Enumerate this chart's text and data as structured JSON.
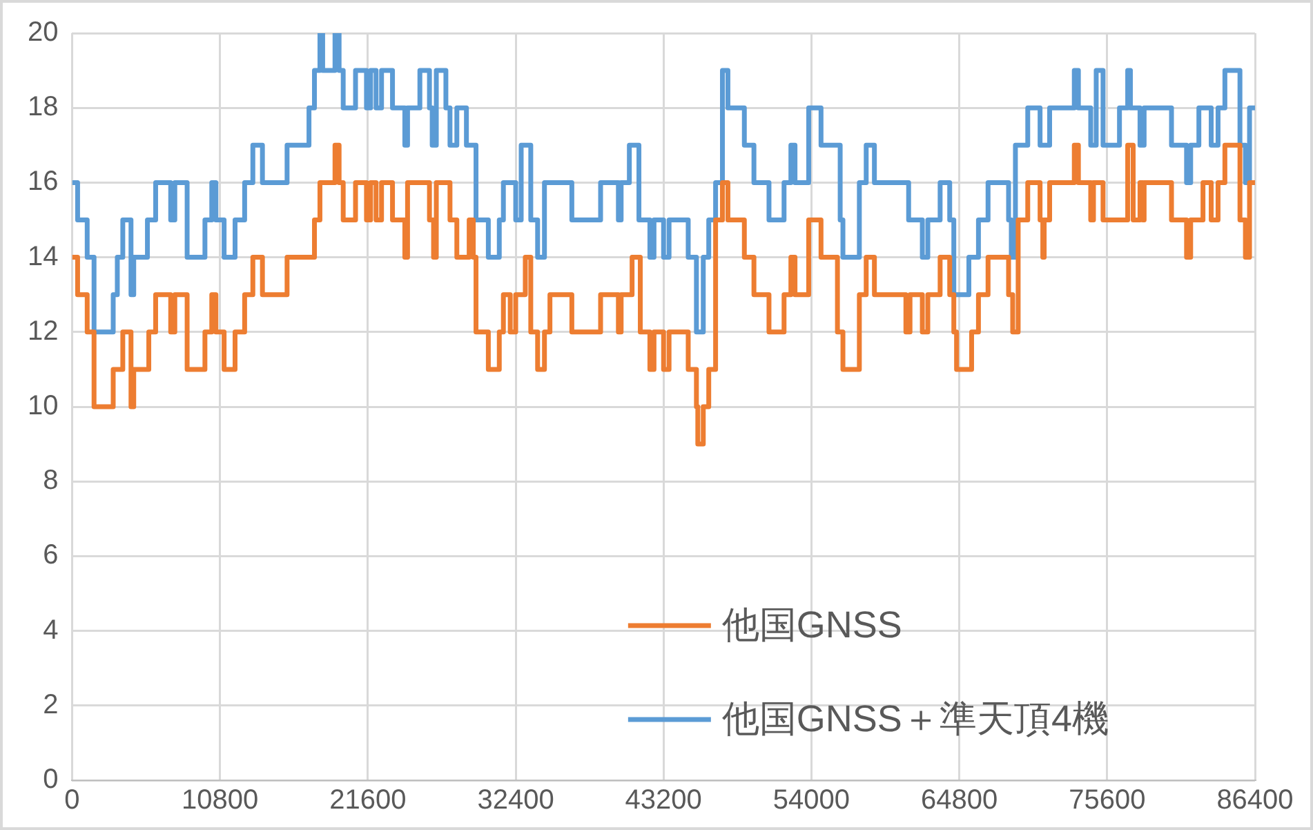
{
  "chart_data": {
    "type": "step",
    "xlim": [
      0,
      86400
    ],
    "xticks": [
      0,
      10800,
      21600,
      32400,
      43200,
      54000,
      64800,
      75600,
      86400
    ],
    "ylim": [
      0,
      20
    ],
    "yticks": [
      0,
      2,
      4,
      6,
      8,
      10,
      12,
      14,
      16,
      18,
      20
    ],
    "grid": true,
    "legend": "bottom right",
    "marker": "none",
    "line_style": "solid",
    "series": [
      {
        "name": "他国GNSS",
        "color": "#ed7d31",
        "x": [
          0,
          400,
          1100,
          1600,
          3000,
          3700,
          4300,
          4500,
          5600,
          6100,
          7200,
          7500,
          8400,
          9700,
          10200,
          10500,
          11100,
          11900,
          12600,
          13200,
          13900,
          15700,
          17700,
          18100,
          19200,
          19500,
          19800,
          20700,
          21500,
          21800,
          22200,
          22600,
          23400,
          24300,
          24500,
          26100,
          26400,
          26600,
          27600,
          28100,
          29000,
          29300,
          29500,
          30400,
          31200,
          31500,
          32000,
          32400,
          33100,
          33500,
          34000,
          34500,
          34900,
          36500,
          38600,
          39900,
          40100,
          40900,
          41500,
          42200,
          42500,
          43200,
          43600,
          45000,
          45600,
          45700,
          46100,
          46500,
          47000,
          47500,
          47900,
          49100,
          49800,
          50900,
          52000,
          52500,
          52800,
          53800,
          54700,
          55900,
          56300,
          57500,
          58000,
          58600,
          60900,
          61200,
          62100,
          62500,
          63400,
          64100,
          64400,
          64600,
          65700,
          66200,
          66900,
          68400,
          68700,
          69100,
          69800,
          70700,
          70900,
          71000,
          71400,
          73200,
          73500,
          74400,
          74600,
          75300,
          77100,
          77500,
          78000,
          78200,
          78300,
          80300,
          81400,
          81700,
          82600,
          83200,
          83700,
          84200,
          85300,
          85700,
          86000,
          86400
        ],
        "values": [
          14,
          13,
          12,
          10,
          11,
          12,
          10,
          11,
          12,
          13,
          12,
          13,
          11,
          12,
          13,
          12,
          11,
          12,
          13,
          14,
          13,
          14,
          15,
          16,
          17,
          16,
          15,
          16,
          15,
          16,
          15,
          16,
          15,
          14,
          16,
          15,
          14,
          16,
          15,
          14,
          15,
          14,
          12,
          11,
          12,
          13,
          12,
          13,
          14,
          12,
          11,
          12,
          13,
          12,
          13,
          12,
          13,
          14,
          12,
          11,
          12,
          11,
          12,
          11,
          10,
          9,
          10,
          11,
          15,
          16,
          15,
          14,
          13,
          12,
          13,
          14,
          13,
          15,
          14,
          12,
          11,
          13,
          14,
          13,
          12,
          13,
          12,
          13,
          14,
          13,
          12,
          11,
          12,
          13,
          14,
          13,
          12,
          15,
          16,
          15,
          14,
          15,
          16,
          17,
          16,
          15,
          16,
          15,
          17,
          15,
          16,
          15,
          16,
          15,
          14,
          15,
          16,
          15,
          16,
          17,
          15,
          14,
          16,
          16
        ]
      },
      {
        "name": "他国GNSS＋準天頂4機",
        "color": "#5b9bd5",
        "x": [
          0,
          400,
          1100,
          1600,
          3000,
          3300,
          3700,
          4300,
          4500,
          5500,
          6100,
          7200,
          7500,
          8400,
          9700,
          10200,
          10500,
          11100,
          11900,
          12600,
          13200,
          13900,
          15700,
          17300,
          17700,
          18100,
          18300,
          19200,
          19500,
          19800,
          20700,
          21500,
          21800,
          22200,
          22600,
          23400,
          24300,
          24500,
          25400,
          26100,
          26300,
          26600,
          27300,
          27600,
          28100,
          28800,
          29500,
          30400,
          31200,
          31500,
          32400,
          32800,
          33500,
          34000,
          34500,
          36500,
          38600,
          39900,
          40100,
          40700,
          41400,
          42200,
          42500,
          43200,
          43600,
          45000,
          45600,
          46100,
          46500,
          47000,
          47500,
          47900,
          49100,
          49800,
          50900,
          52000,
          52500,
          52800,
          53800,
          54700,
          56100,
          56300,
          57500,
          58000,
          58600,
          61100,
          62100,
          62500,
          63400,
          64100,
          64400,
          65500,
          66200,
          66900,
          68400,
          68600,
          68900,
          69800,
          70700,
          71400,
          73200,
          73500,
          74400,
          74800,
          75300,
          76500,
          77100,
          77300,
          78000,
          78300,
          80300,
          81400,
          81700,
          82300,
          83200,
          83700,
          84200,
          85300,
          85700,
          86000,
          86400
        ],
        "values": [
          16,
          15,
          14,
          12,
          13,
          14,
          15,
          13,
          14,
          15,
          16,
          15,
          16,
          14,
          15,
          16,
          15,
          14,
          15,
          16,
          17,
          16,
          17,
          18,
          19,
          20,
          19,
          20,
          19,
          18,
          19,
          18,
          19,
          18,
          19,
          18,
          17,
          18,
          19,
          18,
          17,
          19,
          18,
          17,
          18,
          17,
          15,
          14,
          15,
          16,
          15,
          17,
          15,
          14,
          16,
          15,
          16,
          15,
          16,
          17,
          15,
          14,
          15,
          14,
          15,
          14,
          12,
          14,
          15,
          16,
          19,
          18,
          17,
          16,
          15,
          16,
          17,
          16,
          18,
          17,
          15,
          14,
          16,
          17,
          16,
          15,
          14,
          15,
          16,
          15,
          13,
          14,
          15,
          16,
          15,
          14,
          17,
          18,
          17,
          18,
          19,
          18,
          17,
          19,
          17,
          18,
          19,
          18,
          17,
          18,
          17,
          16,
          17,
          18,
          17,
          18,
          19,
          17,
          16,
          18,
          18
        ]
      }
    ]
  }
}
